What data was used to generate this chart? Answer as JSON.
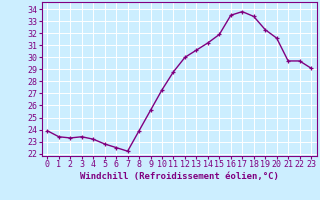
{
  "x": [
    0,
    1,
    2,
    3,
    4,
    5,
    6,
    7,
    8,
    9,
    10,
    11,
    12,
    13,
    14,
    15,
    16,
    17,
    18,
    19,
    20,
    21,
    22,
    23
  ],
  "y": [
    23.9,
    23.4,
    23.3,
    23.4,
    23.2,
    22.8,
    22.5,
    22.2,
    23.9,
    25.6,
    27.3,
    28.8,
    30.0,
    30.6,
    31.2,
    31.9,
    33.5,
    33.8,
    33.4,
    32.3,
    31.6,
    29.7,
    29.7,
    29.1
  ],
  "line_color": "#800080",
  "marker": "+",
  "marker_size": 3.5,
  "line_width": 1.0,
  "bg_color": "#cceeff",
  "grid_color": "#ffffff",
  "xlabel": "Windchill (Refroidissement éolien,°C)",
  "xlabel_fontsize": 6.5,
  "xlabel_color": "#800080",
  "tick_label_color": "#800080",
  "ylim": [
    21.8,
    34.6
  ],
  "yticks": [
    22,
    23,
    24,
    25,
    26,
    27,
    28,
    29,
    30,
    31,
    32,
    33,
    34
  ],
  "xticks": [
    0,
    1,
    2,
    3,
    4,
    5,
    6,
    7,
    8,
    9,
    10,
    11,
    12,
    13,
    14,
    15,
    16,
    17,
    18,
    19,
    20,
    21,
    22,
    23
  ],
  "tick_fontsize": 6.0,
  "spine_color": "#800080"
}
